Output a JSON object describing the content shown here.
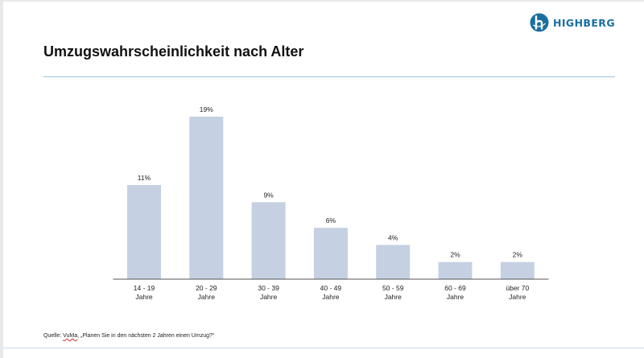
{
  "logo": {
    "text": "HIGHBERG",
    "icon": "highberg-h-logo-icon",
    "color": "#1a6fa0"
  },
  "title": "Umzugswahrscheinlichkeit nach Alter",
  "source": {
    "prefix": "Quelle: ",
    "source_name": "VuMa",
    "suffix": ", „Planen Sie in den nächsten 2 Jahren einen Umzug?“"
  },
  "colors": {
    "bar": "#c5d0e2",
    "axis": "#555555",
    "rule": "#9cc4dc"
  },
  "chart_data": {
    "type": "bar",
    "title": "Umzugswahrscheinlichkeit nach Alter",
    "xlabel": "",
    "ylabel": "",
    "categories": [
      [
        "14 - 19",
        "Jahre"
      ],
      [
        "20 - 29",
        "Jahre"
      ],
      [
        "30 - 39",
        "Jahre"
      ],
      [
        "40 - 49",
        "Jahre"
      ],
      [
        "50 - 59",
        "Jahre"
      ],
      [
        "60 - 69",
        "Jahre"
      ],
      [
        "über 70",
        "Jahre"
      ]
    ],
    "values": [
      11,
      19,
      9,
      6,
      4,
      2,
      2
    ],
    "data_labels": [
      "11%",
      "19%",
      "9%",
      "6%",
      "4%",
      "2%",
      "2%"
    ],
    "unit": "%",
    "ylim": [
      0,
      19
    ],
    "grid": false,
    "legend": "none"
  }
}
